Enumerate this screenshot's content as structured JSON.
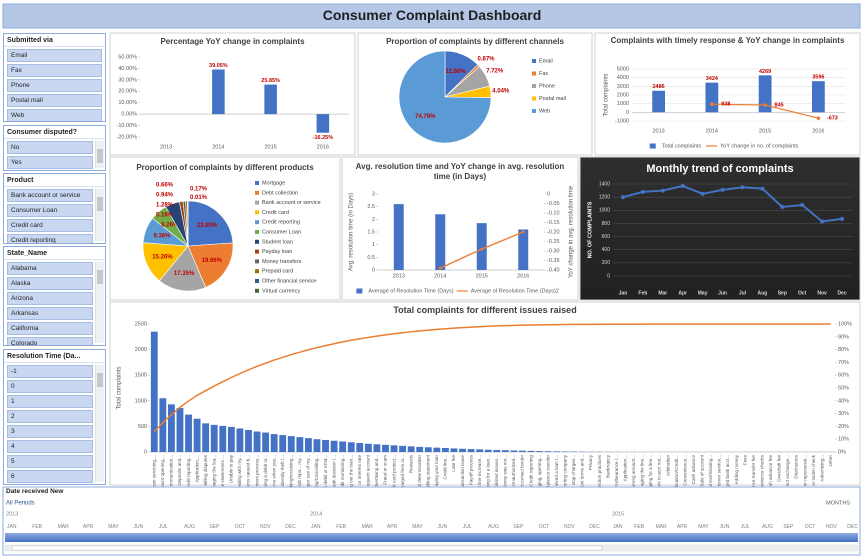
{
  "title": "Consumer Complaint Dashboard",
  "slicers": [
    {
      "title": "Submitted via",
      "items": [
        "Email",
        "Fax",
        "Phone",
        "Postal mail",
        "Web"
      ]
    },
    {
      "title": "Consumer disputed?",
      "items": [
        "No",
        "Yes"
      ]
    },
    {
      "title": "Product",
      "items": [
        "Bank account or service",
        "Consumer Loan",
        "Credit card",
        "Credit reporting"
      ]
    },
    {
      "title": "State_Name",
      "items": [
        "Alabama",
        "Alaska",
        "Arizona",
        "Arkansas",
        "California",
        "Colorado"
      ]
    },
    {
      "title": "Resolution Time (Da...",
      "items": [
        "-1",
        "0",
        "1",
        "2",
        "3",
        "4",
        "5",
        "6"
      ]
    }
  ],
  "timeline": {
    "title": "Date received New",
    "period": "All Periods",
    "unit": "MONTHS",
    "years": [
      "2013",
      "2014",
      "2015"
    ],
    "months": [
      "JAN",
      "FEB",
      "MAR",
      "APR",
      "MAY",
      "JUN",
      "JUL",
      "AUG",
      "SEP",
      "OCT",
      "NOV",
      "DEC"
    ]
  },
  "chart_data": [
    {
      "type": "bar",
      "title": "Percentage YoY change in complaints",
      "categories": [
        "2013",
        "2014",
        "2015",
        "2016"
      ],
      "values": [
        null,
        39.05,
        25.85,
        -16.25
      ],
      "value_labels": [
        null,
        "39.05%",
        "25.85%",
        "-16.25%"
      ],
      "color": "#4472c4",
      "ylim": [
        -20,
        50
      ],
      "yticks": [
        {
          "value": -20,
          "label": "-20.00%"
        },
        {
          "value": -10,
          "label": "-10.00%"
        },
        {
          "value": 0,
          "label": "0.00%"
        },
        {
          "value": 10,
          "label": "10.00%"
        },
        {
          "value": 20,
          "label": "20.00%"
        },
        {
          "value": 30,
          "label": "30.00%"
        },
        {
          "value": 40,
          "label": "40.00%"
        },
        {
          "value": 50,
          "label": "50.00%"
        }
      ],
      "grid": false
    },
    {
      "type": "pie",
      "title": "Proportion of complaints by different channels",
      "categories": [
        "Email",
        "Fax",
        "Phone",
        "Postal mail",
        "Web"
      ],
      "values": [
        12.6,
        0.87,
        7.72,
        4.04,
        74.76
      ],
      "value_labels": [
        "12.60%",
        "0.87%",
        "7.72%",
        "4.04%",
        "74.76%"
      ],
      "colors": [
        "#4472c4",
        "#ed7d31",
        "#a5a5a5",
        "#ffc000",
        "#5b9bd5"
      ],
      "legend": "right"
    },
    {
      "type": "bar",
      "title": "Complaints with timely response & YoY change in complaints",
      "categories": [
        "2013",
        "2014",
        "2015",
        "2016"
      ],
      "y_label": "Total complaints",
      "ylim": [
        -1000,
        5000
      ],
      "yticks": [
        -1000,
        0,
        1000,
        2000,
        3000,
        4000,
        5000
      ],
      "grid": true,
      "legend": "bottom",
      "data_labels": true,
      "series": [
        {
          "name": "Total complaints",
          "type": "bar",
          "color": "#4472c4",
          "values": [
            2486,
            3424,
            4269,
            3596
          ]
        },
        {
          "name": "YoY change in no. of complaints",
          "type": "line",
          "color": "#ed7d31",
          "values": [
            null,
            938,
            845,
            -673
          ]
        }
      ]
    },
    {
      "type": "pie",
      "title": "Proportion of complaints by different products",
      "categories": [
        "Mortgage",
        "Debt collection",
        "Bank account or service",
        "Credit card",
        "Credit reporting",
        "Consumer Loan",
        "Student loan",
        "Payday loan",
        "Money transfers",
        "Prepaid card",
        "Other financial service",
        "Virtual currency"
      ],
      "values": [
        23.9,
        19.66,
        17.35,
        15.26,
        9.36,
        6.26,
        5.16,
        1.28,
        0.94,
        0.66,
        0.17,
        0.01
      ],
      "value_labels": [
        "23.90%",
        "19.66%",
        "17.35%",
        "15.26%",
        "9.36%",
        "6.26%",
        "5.16%",
        "1.28%",
        "0.94%",
        "0.66%",
        "0.17%",
        "0.01%"
      ],
      "colors": [
        "#4472c4",
        "#ed7d31",
        "#a5a5a5",
        "#ffc000",
        "#5b9bd5",
        "#70ad47",
        "#264478",
        "#9e480e",
        "#636363",
        "#997300",
        "#255e91",
        "#43682b"
      ],
      "legend": "right"
    },
    {
      "type": "bar",
      "title": "Avg. resolution time and YoY change in avg. resolution time (in Days)",
      "categories": [
        "2013",
        "2014",
        "2015",
        "2016"
      ],
      "y_label": "Avg. resolution time (in Days)",
      "y2_label": "YoY change in avg. resolution time",
      "ylim": [
        0,
        3
      ],
      "yticks": [
        0,
        0.5,
        1,
        1.5,
        2,
        2.5,
        3
      ],
      "y2lim": [
        -0.4,
        0
      ],
      "y2ticks": [
        0,
        -0.05,
        {
          "value": -0.1,
          "label": "-0.10"
        },
        -0.15,
        {
          "value": -0.2,
          "label": "-0.20"
        },
        -0.25,
        {
          "value": -0.3,
          "label": "-0.30"
        },
        -0.35,
        {
          "value": -0.4,
          "label": "-0.40"
        }
      ],
      "grid": false,
      "legend": "bottom",
      "series": [
        {
          "name": "Average of Resolution Time (Days)",
          "type": "bar",
          "color": "#4472c4",
          "values": [
            2.6,
            2.2,
            1.85,
            1.6
          ]
        },
        {
          "name": "Average of Resolution Time (Days)2",
          "type": "line",
          "axis": "y2",
          "color": "#ed7d31",
          "values": [
            null,
            -0.39,
            -0.29,
            -0.2
          ]
        }
      ]
    },
    {
      "type": "line",
      "title": "Monthly trend of complaints",
      "categories": [
        "Jan",
        "Feb",
        "Mar",
        "Apr",
        "May",
        "Jun",
        "Jul",
        "Aug",
        "Sep",
        "Oct",
        "Nov",
        "Dec"
      ],
      "values": [
        1200,
        1280,
        1300,
        1370,
        1250,
        1310,
        1350,
        1330,
        1050,
        1080,
        830,
        870
      ],
      "y_label": "NO. OF COMPLAINTS",
      "ylim": [
        0,
        1400
      ],
      "yticks": [
        0,
        200,
        400,
        600,
        800,
        1000,
        1200,
        1400
      ],
      "grid": true,
      "color": "#4472c4",
      "background": "#262626"
    },
    {
      "type": "bar",
      "title": "Total complaints for different issues raised",
      "y_label": "Total complaints",
      "categories": [
        "Loan servicing,...",
        "Account opening,...",
        "Communication...",
        "Deposits and...",
        "Credit reporting...",
        "Application,...",
        "Billing disputes",
        "Managing the loa...",
        "False statements ...",
        "Unable to pay",
        "Dealing with my...",
        "Problems caused b...",
        "Settlement process...",
        "Using a debit or...",
        "Problems when you...",
        "Identity theft /...",
        "Making/receiving...",
        "Credit repo... my...",
        "Improper use of my...",
        "Closing/Cancelling...",
        "Using a debit or ATM...",
        "Credit decision /...",
        "Credit monitoring...",
        "Taking out the loan...",
        "APR or interest rate",
        "Delinquent account",
        "Advertising and...",
        "Fraud or scam",
        "Credit card protect...",
        "Charged fees or...",
        "Rewards",
        "Credit determination",
        "Billing statement",
        "Repaying your loan",
        "Credit line...",
        "Late fee",
        "Transaction issue",
        "Payoff process",
        "Credit line increase...",
        "Shopping for a loan...",
        "Unsolicited issuan...",
        "Money was not...",
        "Unauthorized...",
        "Can't contact lender",
        "Credit reporting",
        "Managing, opening...",
        "Balance transfer",
        "Received a loan I...",
        "Credit reporting company",
        "Can't stop charges...",
        "Account terms and...",
        "Privacy",
        "Collection practices",
        "Bankruptcy",
        "Forbearance /...",
        "Application...",
        "Wrong amount...",
        "Managing the line...",
        "Shopping for a line...",
        "Payment to acct not...",
        "Arbitration",
        "Application/Credit...",
        "Convenience...",
        "Cash advance",
        "Sale of account",
        "Incorrect/missing...",
        "Customer service...",
        "Charged bank acct...",
        "Adding money",
        "Fees",
        "Balance transfer fee",
        "Convenience checks",
        "Cash advance fee",
        "Overdraft fee",
        "Incorrect exchange...",
        "Disclosures",
        "Lender repossessi...",
        "Lost or stolen check",
        "Advertising...",
        "Other"
      ],
      "ylim": [
        0,
        2500
      ],
      "yticks": [
        0,
        500,
        1000,
        1500,
        2000,
        2500
      ],
      "y2lim": [
        0,
        100
      ],
      "y2ticks": [
        {
          "value": 0,
          "label": "0%"
        },
        {
          "value": 10,
          "label": "10%"
        },
        {
          "value": 20,
          "label": "20%"
        },
        {
          "value": 30,
          "label": "30%"
        },
        {
          "value": 40,
          "label": "40%"
        },
        {
          "value": 50,
          "label": "50%"
        },
        {
          "value": 60,
          "label": "60%"
        },
        {
          "value": 70,
          "label": "70%"
        },
        {
          "value": 80,
          "label": "80%"
        },
        {
          "value": 90,
          "label": "90%"
        },
        {
          "value": 100,
          "label": "100%"
        }
      ],
      "grid": false,
      "series": [
        {
          "type": "bar",
          "color": "#4472c4",
          "values": [
            2350,
            1050,
            930,
            860,
            730,
            650,
            560,
            530,
            510,
            490,
            460,
            430,
            400,
            380,
            350,
            330,
            310,
            290,
            270,
            250,
            235,
            220,
            205,
            190,
            175,
            160,
            150,
            140,
            130,
            120,
            110,
            100,
            92,
            85,
            78,
            70,
            63,
            57,
            51,
            45,
            40,
            35,
            30,
            26,
            22,
            18,
            15,
            12,
            10,
            8,
            6,
            5,
            4,
            3,
            3,
            2,
            2,
            2,
            1,
            1,
            1,
            1,
            1,
            1,
            1,
            1,
            1,
            1,
            1,
            1,
            1,
            1,
            1,
            1,
            1,
            1,
            1,
            1,
            1,
            1
          ]
        },
        {
          "type": "line",
          "axis": "y2",
          "color": "#ed7d31",
          "values": [
            15.8,
            22.9,
            29.1,
            34.9,
            39.8,
            44.2,
            47.9,
            51.5,
            54.9,
            58.2,
            61.3,
            64.2,
            66.9,
            69.4,
            71.8,
            74.0,
            76.1,
            78.0,
            79.9,
            81.6,
            83.1,
            84.6,
            86.0,
            87.3,
            88.5,
            89.5,
            90.5,
            91.5,
            92.4,
            93.2,
            93.9,
            94.6,
            95.2,
            95.8,
            96.3,
            96.8,
            97.2,
            97.6,
            97.9,
            98.2,
            98.5,
            98.7,
            98.9,
            99.1,
            99.2,
            99.3,
            99.4,
            99.5,
            99.6,
            99.7,
            99.7,
            99.7,
            99.8,
            99.8,
            99.8,
            99.8,
            99.8,
            99.9,
            99.9,
            99.9,
            99.9,
            99.9,
            99.9,
            99.9,
            99.9,
            99.9,
            99.9,
            99.9,
            99.9,
            99.9,
            99.9,
            99.9,
            99.9,
            99.9,
            99.9,
            99.9,
            99.9,
            99.9,
            99.9,
            100
          ]
        }
      ]
    }
  ]
}
